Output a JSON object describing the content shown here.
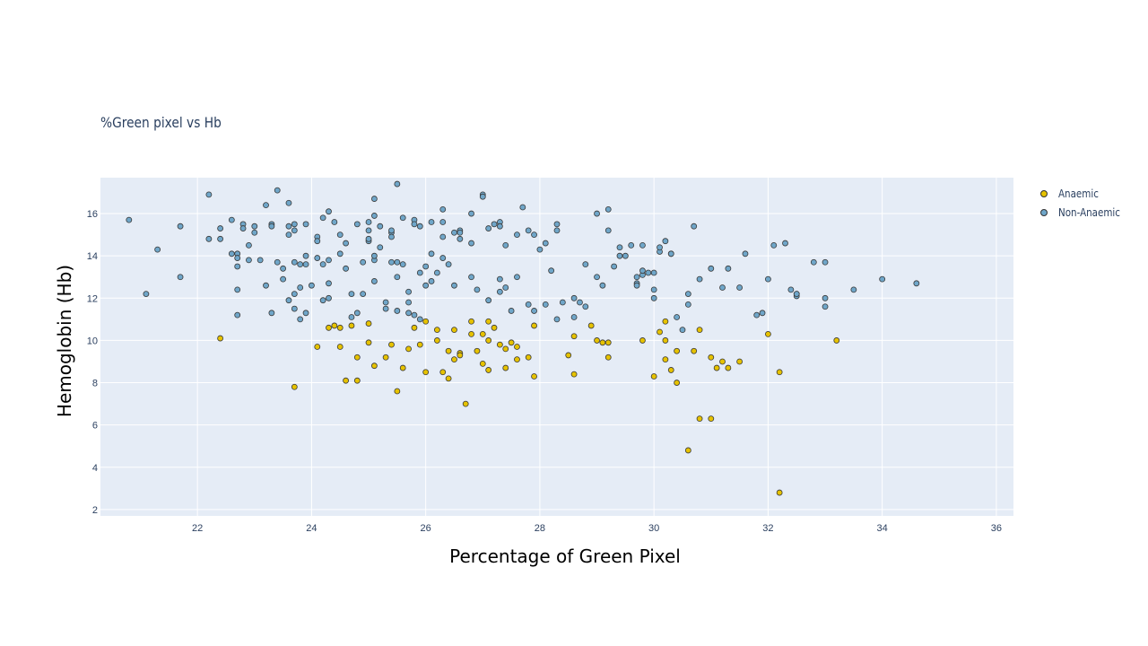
{
  "chart_data": {
    "type": "scatter",
    "title": "%Green pixel vs Hb",
    "xlabel": "Percentage of Green Pixel",
    "ylabel": "Hemoglobin (Hb)",
    "xlim": [
      20.3,
      36.3
    ],
    "ylim": [
      1.7,
      17.7
    ],
    "x_ticks": [
      22,
      24,
      26,
      28,
      30,
      32,
      34,
      36
    ],
    "y_ticks": [
      2,
      4,
      6,
      8,
      10,
      12,
      14,
      16
    ],
    "grid": true,
    "legend_position": "top-right",
    "series": [
      {
        "name": "Anaemic",
        "color": "#e6c200",
        "points": [
          [
            22.4,
            10.1
          ],
          [
            23.7,
            7.8
          ],
          [
            24.1,
            9.7
          ],
          [
            24.3,
            10.6
          ],
          [
            24.4,
            10.7
          ],
          [
            24.5,
            10.6
          ],
          [
            24.5,
            9.7
          ],
          [
            24.6,
            8.1
          ],
          [
            24.7,
            10.7
          ],
          [
            24.8,
            9.2
          ],
          [
            24.8,
            8.1
          ],
          [
            25.0,
            10.8
          ],
          [
            25.0,
            9.9
          ],
          [
            25.1,
            8.8
          ],
          [
            25.3,
            9.2
          ],
          [
            25.4,
            9.8
          ],
          [
            25.5,
            7.6
          ],
          [
            25.6,
            8.7
          ],
          [
            25.7,
            9.6
          ],
          [
            25.8,
            10.6
          ],
          [
            25.9,
            9.8
          ],
          [
            26.0,
            10.9
          ],
          [
            26.0,
            8.5
          ],
          [
            26.2,
            10.5
          ],
          [
            26.2,
            10.0
          ],
          [
            26.3,
            8.5
          ],
          [
            26.4,
            9.5
          ],
          [
            26.4,
            8.2
          ],
          [
            26.5,
            10.5
          ],
          [
            26.6,
            9.4
          ],
          [
            26.6,
            9.3
          ],
          [
            26.5,
            9.1
          ],
          [
            26.7,
            7.0
          ],
          [
            26.8,
            10.9
          ],
          [
            26.8,
            10.3
          ],
          [
            26.9,
            9.5
          ],
          [
            27.0,
            10.3
          ],
          [
            27.0,
            8.9
          ],
          [
            27.1,
            10.9
          ],
          [
            27.1,
            10.0
          ],
          [
            27.1,
            8.6
          ],
          [
            27.2,
            10.6
          ],
          [
            27.3,
            9.8
          ],
          [
            27.4,
            9.6
          ],
          [
            27.4,
            8.7
          ],
          [
            27.5,
            9.9
          ],
          [
            27.6,
            9.7
          ],
          [
            27.6,
            9.1
          ],
          [
            27.8,
            9.2
          ],
          [
            27.9,
            10.7
          ],
          [
            27.9,
            8.3
          ],
          [
            28.5,
            9.3
          ],
          [
            28.6,
            8.4
          ],
          [
            28.6,
            10.2
          ],
          [
            28.9,
            10.7
          ],
          [
            29.0,
            10.0
          ],
          [
            29.1,
            9.9
          ],
          [
            29.2,
            9.9
          ],
          [
            29.2,
            9.2
          ],
          [
            29.8,
            10.0
          ],
          [
            30.0,
            8.3
          ],
          [
            30.1,
            10.4
          ],
          [
            30.2,
            10.9
          ],
          [
            30.2,
            10.0
          ],
          [
            30.2,
            9.1
          ],
          [
            30.3,
            8.6
          ],
          [
            30.4,
            9.5
          ],
          [
            30.4,
            8.0
          ],
          [
            30.6,
            4.8
          ],
          [
            30.7,
            9.5
          ],
          [
            30.8,
            6.3
          ],
          [
            30.8,
            10.5
          ],
          [
            31.0,
            9.2
          ],
          [
            31.0,
            6.3
          ],
          [
            31.1,
            8.7
          ],
          [
            31.2,
            9.0
          ],
          [
            31.3,
            8.7
          ],
          [
            31.5,
            9.0
          ],
          [
            32.0,
            10.3
          ],
          [
            32.2,
            8.5
          ],
          [
            32.2,
            2.8
          ],
          [
            33.2,
            10.0
          ]
        ]
      },
      {
        "name": "Non-Anaemic",
        "color": "#6fa6c9",
        "points": [
          [
            20.8,
            15.7
          ],
          [
            21.1,
            12.2
          ],
          [
            21.3,
            14.3
          ],
          [
            21.7,
            13.0
          ],
          [
            21.7,
            15.4
          ],
          [
            22.2,
            16.9
          ],
          [
            22.2,
            14.8
          ],
          [
            22.4,
            15.3
          ],
          [
            22.4,
            14.8
          ],
          [
            22.6,
            15.7
          ],
          [
            22.6,
            14.1
          ],
          [
            22.7,
            14.1
          ],
          [
            22.7,
            13.9
          ],
          [
            22.7,
            13.5
          ],
          [
            22.7,
            12.4
          ],
          [
            22.7,
            11.2
          ],
          [
            22.8,
            15.5
          ],
          [
            22.8,
            15.3
          ],
          [
            22.9,
            14.5
          ],
          [
            22.9,
            13.8
          ],
          [
            23.0,
            15.1
          ],
          [
            23.0,
            15.4
          ],
          [
            23.1,
            13.8
          ],
          [
            23.2,
            12.6
          ],
          [
            23.2,
            16.4
          ],
          [
            23.3,
            15.5
          ],
          [
            23.3,
            11.3
          ],
          [
            23.3,
            15.4
          ],
          [
            23.4,
            13.7
          ],
          [
            23.4,
            17.1
          ],
          [
            23.5,
            13.4
          ],
          [
            23.5,
            12.9
          ],
          [
            23.6,
            15.0
          ],
          [
            23.6,
            16.5
          ],
          [
            23.6,
            15.4
          ],
          [
            23.6,
            11.9
          ],
          [
            23.7,
            15.5
          ],
          [
            23.7,
            15.2
          ],
          [
            23.7,
            13.7
          ],
          [
            23.7,
            12.2
          ],
          [
            23.7,
            11.5
          ],
          [
            23.8,
            12.5
          ],
          [
            23.8,
            13.6
          ],
          [
            23.8,
            11.0
          ],
          [
            23.9,
            15.5
          ],
          [
            23.9,
            14.0
          ],
          [
            23.9,
            13.6
          ],
          [
            23.9,
            11.3
          ],
          [
            24.0,
            12.6
          ],
          [
            24.1,
            14.9
          ],
          [
            24.1,
            13.9
          ],
          [
            24.1,
            14.7
          ],
          [
            24.2,
            15.8
          ],
          [
            24.2,
            13.6
          ],
          [
            24.2,
            11.9
          ],
          [
            24.3,
            16.1
          ],
          [
            24.3,
            12.7
          ],
          [
            24.3,
            12.0
          ],
          [
            24.3,
            13.8
          ],
          [
            24.4,
            15.6
          ],
          [
            24.5,
            14.1
          ],
          [
            24.5,
            15.0
          ],
          [
            24.6,
            14.6
          ],
          [
            24.6,
            13.4
          ],
          [
            24.7,
            11.1
          ],
          [
            24.7,
            12.2
          ],
          [
            24.8,
            11.3
          ],
          [
            24.8,
            15.5
          ],
          [
            24.9,
            13.7
          ],
          [
            24.9,
            12.2
          ],
          [
            25.0,
            15.2
          ],
          [
            25.0,
            14.7
          ],
          [
            25.0,
            15.6
          ],
          [
            25.0,
            14.8
          ],
          [
            25.1,
            12.8
          ],
          [
            25.1,
            13.8
          ],
          [
            25.1,
            15.9
          ],
          [
            25.1,
            16.7
          ],
          [
            25.1,
            14.0
          ],
          [
            25.2,
            15.4
          ],
          [
            25.2,
            14.4
          ],
          [
            25.3,
            11.8
          ],
          [
            25.3,
            11.5
          ],
          [
            25.4,
            15.1
          ],
          [
            25.4,
            15.2
          ],
          [
            25.4,
            14.9
          ],
          [
            25.4,
            13.7
          ],
          [
            25.5,
            13.7
          ],
          [
            25.5,
            17.4
          ],
          [
            25.5,
            13.0
          ],
          [
            25.5,
            11.4
          ],
          [
            25.6,
            15.8
          ],
          [
            25.6,
            13.6
          ],
          [
            25.7,
            12.3
          ],
          [
            25.7,
            11.8
          ],
          [
            25.7,
            11.3
          ],
          [
            25.8,
            11.2
          ],
          [
            25.8,
            15.7
          ],
          [
            25.8,
            15.5
          ],
          [
            25.9,
            13.2
          ],
          [
            25.9,
            15.4
          ],
          [
            25.9,
            11.0
          ],
          [
            26.0,
            12.6
          ],
          [
            26.0,
            13.5
          ],
          [
            26.1,
            14.1
          ],
          [
            26.1,
            15.6
          ],
          [
            26.1,
            12.8
          ],
          [
            26.2,
            13.2
          ],
          [
            26.3,
            16.2
          ],
          [
            26.3,
            15.6
          ],
          [
            26.3,
            13.9
          ],
          [
            26.3,
            14.9
          ],
          [
            26.4,
            13.6
          ],
          [
            26.5,
            12.6
          ],
          [
            26.5,
            15.1
          ],
          [
            26.6,
            15.2
          ],
          [
            26.6,
            14.8
          ],
          [
            26.6,
            15.1
          ],
          [
            26.8,
            13.0
          ],
          [
            26.8,
            16.0
          ],
          [
            26.8,
            14.6
          ],
          [
            26.9,
            12.4
          ],
          [
            27.0,
            16.9
          ],
          [
            27.0,
            16.8
          ],
          [
            27.1,
            11.9
          ],
          [
            27.1,
            15.3
          ],
          [
            27.2,
            15.5
          ],
          [
            27.3,
            12.9
          ],
          [
            27.3,
            15.6
          ],
          [
            27.3,
            15.4
          ],
          [
            27.3,
            12.3
          ],
          [
            27.4,
            12.5
          ],
          [
            27.4,
            14.5
          ],
          [
            27.5,
            11.4
          ],
          [
            27.6,
            15.0
          ],
          [
            27.6,
            13.0
          ],
          [
            27.7,
            16.3
          ],
          [
            27.8,
            11.7
          ],
          [
            27.8,
            15.2
          ],
          [
            27.9,
            15.0
          ],
          [
            27.9,
            11.4
          ],
          [
            28.0,
            14.3
          ],
          [
            28.1,
            14.6
          ],
          [
            28.1,
            11.7
          ],
          [
            28.2,
            13.3
          ],
          [
            28.3,
            15.2
          ],
          [
            28.3,
            15.5
          ],
          [
            28.3,
            11.0
          ],
          [
            28.4,
            11.8
          ],
          [
            28.6,
            12.0
          ],
          [
            28.6,
            11.1
          ],
          [
            28.7,
            11.8
          ],
          [
            28.8,
            13.6
          ],
          [
            28.8,
            11.6
          ],
          [
            29.0,
            13.0
          ],
          [
            29.0,
            16.0
          ],
          [
            29.1,
            12.6
          ],
          [
            29.2,
            15.2
          ],
          [
            29.2,
            16.2
          ],
          [
            29.3,
            13.5
          ],
          [
            29.4,
            14.0
          ],
          [
            29.4,
            14.4
          ],
          [
            29.5,
            14.0
          ],
          [
            29.6,
            14.5
          ],
          [
            29.7,
            13.0
          ],
          [
            29.7,
            12.7
          ],
          [
            29.7,
            12.6
          ],
          [
            29.8,
            13.1
          ],
          [
            29.8,
            14.5
          ],
          [
            29.8,
            13.3
          ],
          [
            29.9,
            13.2
          ],
          [
            30.0,
            12.4
          ],
          [
            30.0,
            12.0
          ],
          [
            30.0,
            13.2
          ],
          [
            30.1,
            14.2
          ],
          [
            30.1,
            14.4
          ],
          [
            30.2,
            14.7
          ],
          [
            30.3,
            14.1
          ],
          [
            30.3,
            14.1
          ],
          [
            30.4,
            11.1
          ],
          [
            30.5,
            10.5
          ],
          [
            30.6,
            12.2
          ],
          [
            30.6,
            11.7
          ],
          [
            30.7,
            15.4
          ],
          [
            30.8,
            12.9
          ],
          [
            31.0,
            13.4
          ],
          [
            31.2,
            12.5
          ],
          [
            31.3,
            13.4
          ],
          [
            31.5,
            12.5
          ],
          [
            31.6,
            14.1
          ],
          [
            31.8,
            11.2
          ],
          [
            31.9,
            11.3
          ],
          [
            32.0,
            12.9
          ],
          [
            32.1,
            14.5
          ],
          [
            32.3,
            14.6
          ],
          [
            32.4,
            12.4
          ],
          [
            32.5,
            12.2
          ],
          [
            32.5,
            12.1
          ],
          [
            32.5,
            12.2
          ],
          [
            32.8,
            13.7
          ],
          [
            33.0,
            13.7
          ],
          [
            33.0,
            11.6
          ],
          [
            33.0,
            12.0
          ],
          [
            33.5,
            12.4
          ],
          [
            34.0,
            12.9
          ],
          [
            34.6,
            12.7
          ]
        ]
      }
    ]
  }
}
